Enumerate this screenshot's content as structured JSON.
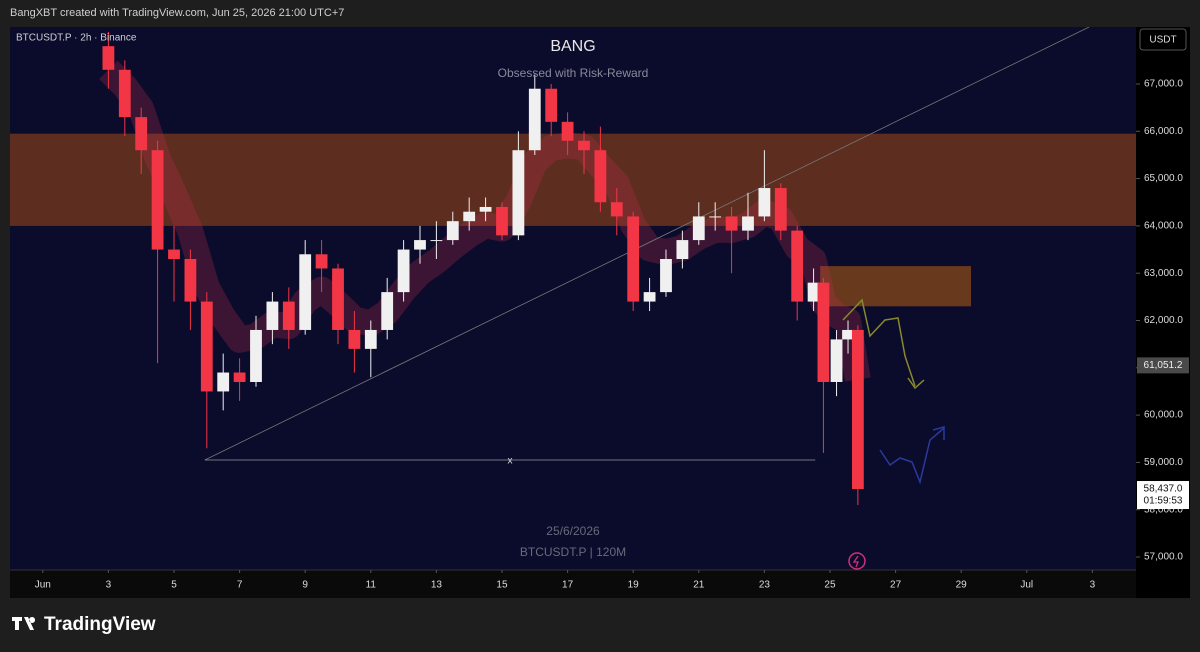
{
  "header": "BangXBT created with TradingView.com, Jun 25, 2026 21:00 UTC+7",
  "footer": "TradingView",
  "chart_data": {
    "type": "candlestick",
    "symbol": "BTCUSDT.P · 2h · Binance",
    "title": "BANG",
    "subtitle": "Obsessed with Risk-Reward",
    "watermark": [
      "25/6/2026",
      "BTCUSDT.P | 120M"
    ],
    "currency": "USDT",
    "up_color": "#f0f0f0",
    "down_color": "#f23645",
    "grid": false,
    "xlim": [
      0,
      34.33
    ],
    "ylim": [
      56725,
      68205
    ],
    "xticks": [
      {
        "value": 1,
        "label": "Jun"
      },
      3,
      5,
      7,
      9,
      11,
      13,
      15,
      17,
      19,
      21,
      23,
      25,
      27,
      29,
      {
        "value": 31,
        "label": "Jul"
      },
      {
        "value": 33,
        "label": "3"
      }
    ],
    "yticks": [
      {
        "value": 57000,
        "label": "57,000.0"
      },
      {
        "value": 58000,
        "label": "58,000.0"
      },
      {
        "value": 59000,
        "label": "59,000.0"
      },
      {
        "value": 60000,
        "label": "60,000.0"
      },
      {
        "value": 61000,
        "label": "61,000.0"
      },
      {
        "value": 62000,
        "label": "62,000.0"
      },
      {
        "value": 63000,
        "label": "63,000.0"
      },
      {
        "value": 64000,
        "label": "64,000.0"
      },
      {
        "value": 65000,
        "label": "65,000.0"
      },
      {
        "value": 66000,
        "label": "66,000.0"
      },
      {
        "value": 67000,
        "label": "67,000.0"
      }
    ],
    "x": [
      3.0,
      3.5,
      4.0,
      4.5,
      5.0,
      5.5,
      6.0,
      6.5,
      7.0,
      7.5,
      8.0,
      8.5,
      9.0,
      9.5,
      10.0,
      10.5,
      11.0,
      11.5,
      12.0,
      12.5,
      13.0,
      13.5,
      14.0,
      14.5,
      15.0,
      15.5,
      16.0,
      16.5,
      17.0,
      17.5,
      18.0,
      18.5,
      19.0,
      19.5,
      20.0,
      20.5,
      21.0,
      21.5,
      22.0,
      22.5,
      23.0,
      23.5,
      24.0,
      24.5,
      24.8,
      25.2,
      25.55,
      25.85
    ],
    "open": [
      67800,
      67300,
      66300,
      65600,
      63500,
      63300,
      62400,
      60500,
      60900,
      60700,
      61800,
      62400,
      61800,
      63400,
      63100,
      61800,
      61400,
      61800,
      62600,
      63500,
      63700,
      63700,
      64100,
      64300,
      64400,
      63800,
      65600,
      66900,
      66200,
      65800,
      65600,
      64500,
      64200,
      62400,
      62600,
      63300,
      63700,
      64200,
      64200,
      63900,
      64200,
      64800,
      63900,
      62400,
      62800,
      60700,
      61600,
      61800
    ],
    "high": [
      68100,
      67500,
      66500,
      65800,
      64000,
      63500,
      62600,
      61300,
      61200,
      62100,
      62600,
      62700,
      63700,
      63700,
      63200,
      62200,
      62000,
      62900,
      63700,
      64000,
      64100,
      64300,
      64600,
      64600,
      64500,
      66000,
      67200,
      67000,
      66400,
      66000,
      66100,
      64800,
      64300,
      62900,
      63500,
      63900,
      64500,
      64500,
      64400,
      64700,
      65600,
      64900,
      64000,
      63100,
      62900,
      61800,
      62000,
      61900
    ],
    "low": [
      66900,
      65900,
      65100,
      61100,
      62400,
      61800,
      59300,
      60100,
      60300,
      60600,
      61500,
      61400,
      61700,
      62600,
      61500,
      60900,
      60800,
      61600,
      62400,
      63200,
      63300,
      63600,
      63900,
      64100,
      63700,
      63700,
      65500,
      65900,
      65500,
      65100,
      64300,
      63800,
      62200,
      62200,
      62500,
      63100,
      63600,
      63900,
      63000,
      63700,
      64100,
      63700,
      62000,
      62200,
      59200,
      60400,
      61300,
      58100
    ],
    "close": [
      67300,
      66300,
      65600,
      63500,
      63300,
      62400,
      60500,
      60900,
      60700,
      61800,
      62400,
      61800,
      63400,
      63100,
      61800,
      61400,
      61800,
      62600,
      63500,
      63700,
      63700,
      64100,
      64300,
      64400,
      63800,
      65600,
      66900,
      66200,
      65800,
      65600,
      64500,
      64200,
      62400,
      62600,
      63300,
      63700,
      64200,
      64200,
      63900,
      64200,
      64800,
      63900,
      62400,
      62800,
      60700,
      61600,
      61800,
      58437
    ],
    "zones": [
      {
        "from": 64000,
        "to": 65950,
        "color": "#7a3a1c"
      },
      {
        "from": 62300,
        "to": 63150,
        "x": [
          24.7,
          29.3
        ],
        "color": "#8a4a1a"
      }
    ],
    "trendline": {
      "x": [
        5.94,
        32.9
      ],
      "y": [
        59050,
        68205
      ]
    },
    "hline": {
      "x": [
        5.94,
        24.55
      ],
      "value": 59050,
      "label": "x"
    },
    "price_tags": [
      {
        "value": 61051.2,
        "label": "61,051.2"
      }
    ],
    "last_price": {
      "value": 58437,
      "label": "58,437.0",
      "countdown": "01:59:53"
    }
  }
}
